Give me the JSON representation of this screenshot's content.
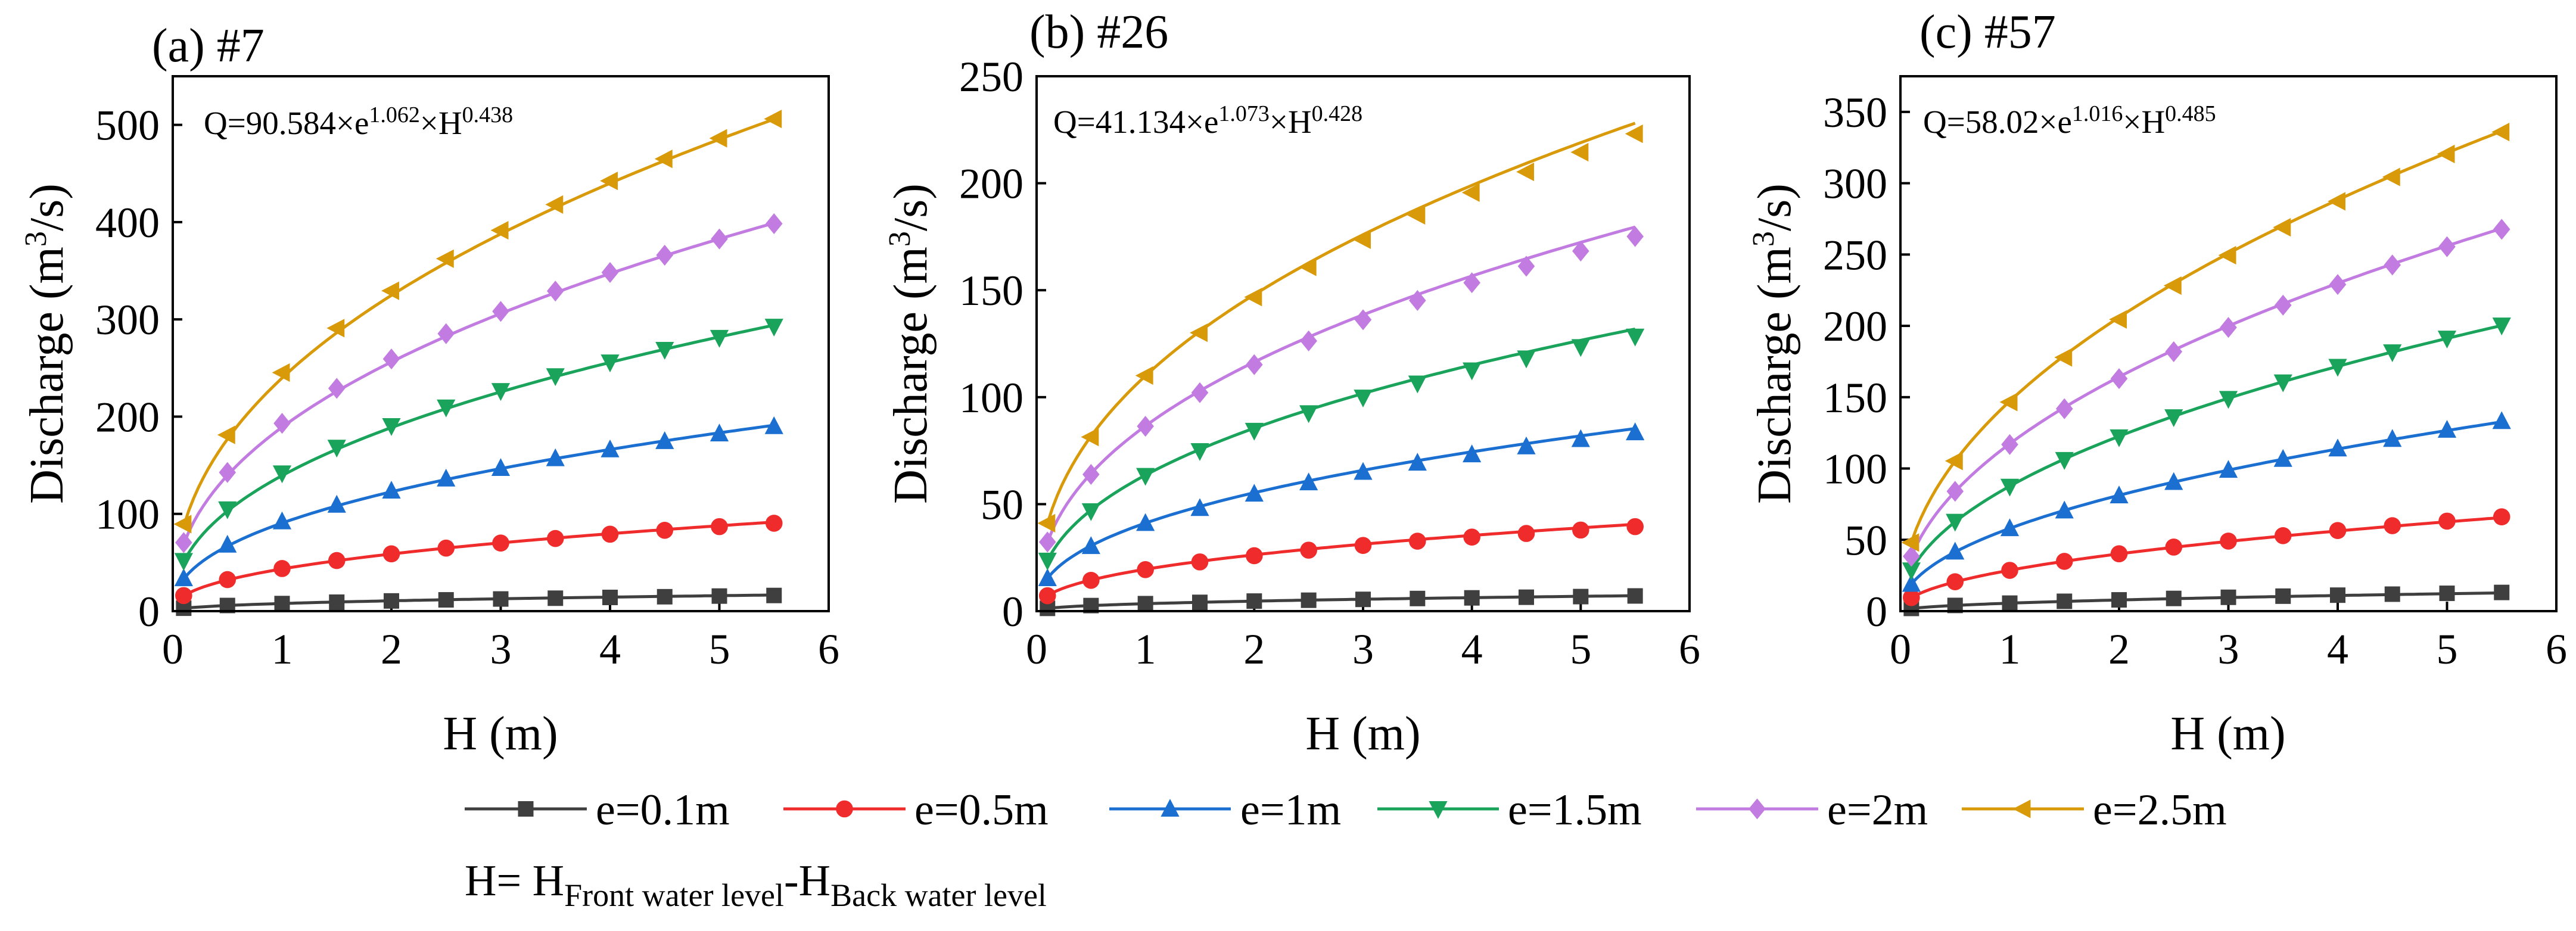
{
  "legend": {
    "items": [
      {
        "label": "e=0.1m",
        "color": "#3f3f3f",
        "marker": "square"
      },
      {
        "label": "e=0.5m",
        "color": "#ef2b2b",
        "marker": "circle"
      },
      {
        "label": "e=1m",
        "color": "#1a6fd1",
        "marker": "triangle-up"
      },
      {
        "label": "e=1.5m",
        "color": "#1aa35a",
        "marker": "triangle-down"
      },
      {
        "label": "e=2m",
        "color": "#c27be0",
        "marker": "diamond"
      },
      {
        "label": "e=2.5m",
        "color": "#d99a0a",
        "marker": "triangle-left"
      }
    ]
  },
  "note": {
    "prefix": "H= H",
    "sub1": "Front water level",
    "mid": "-H",
    "sub2": "Back water level"
  },
  "chart_data": [
    {
      "type": "line",
      "title": "(a) #7",
      "equation": {
        "base": "Q=90.584×e",
        "exp1": "1.062",
        "mid": "×H",
        "exp2": "0.438"
      },
      "coef": 90.584,
      "p_e": 1.062,
      "p_h": 0.438,
      "xlabel": "H (m)",
      "ylabel_prefix": "Discharge (m",
      "ylabel_sup": "3",
      "ylabel_suffix": "/s)",
      "xlim": [
        0,
        6
      ],
      "ylim": [
        0,
        550
      ],
      "xticks": [
        0,
        1,
        2,
        3,
        4,
        5,
        6
      ],
      "yticks": [
        0,
        100,
        200,
        300,
        400,
        500
      ],
      "x": [
        0.1,
        0.5,
        1,
        1.5,
        2,
        2.5,
        3,
        3.5,
        4,
        4.5,
        5,
        5.5
      ],
      "series": [
        {
          "name": "e=0.1m",
          "e": 0.1,
          "values": [
            3.0,
            5.8,
            7.8,
            9.2,
            10.5,
            11.6,
            12.5,
            13.3,
            14.1,
            14.8,
            15.5,
            16.1
          ]
        },
        {
          "name": "e=0.5m",
          "e": 0.5,
          "values": [
            16.0,
            32.4,
            43.8,
            52.0,
            58.9,
            64.8,
            70.0,
            74.7,
            79.1,
            83.1,
            86.9,
            90.4
          ]
        },
        {
          "name": "e=1m",
          "e": 1,
          "values": [
            33.6,
            68.1,
            92.1,
            109.2,
            123.7,
            136.1,
            147.0,
            157.0,
            166.1,
            174.6,
            182.5,
            190.0
          ]
        },
        {
          "name": "e=1.5m",
          "e": 1.5,
          "values": [
            51.8,
            104.9,
            141.9,
            168.3,
            190.5,
            209.6,
            226.5,
            241.8,
            255.9,
            268.9,
            281.2,
            292.7
          ]
        },
        {
          "name": "e=2m",
          "e": 2,
          "values": [
            70.5,
            142.6,
            193.1,
            229.1,
            259.3,
            285.3,
            308.2,
            329.1,
            348.2,
            366.0,
            382.7,
            398.4
          ]
        },
        {
          "name": "e=2.5m",
          "e": 2.5,
          "values": [
            89.5,
            181.2,
            245.3,
            291.0,
            329.4,
            362.4,
            391.6,
            418.1,
            442.4,
            465.0,
            486.2,
            506.1
          ]
        }
      ]
    },
    {
      "type": "line",
      "title": "(b) #26",
      "equation": {
        "base": "Q=41.134×e",
        "exp1": "1.073",
        "mid": "×H",
        "exp2": "0.428"
      },
      "coef": 41.134,
      "p_e": 1.073,
      "p_h": 0.428,
      "xlabel": "H (m)",
      "ylabel_prefix": "Discharge (m",
      "ylabel_sup": "3",
      "ylabel_suffix": "/s)",
      "xlim": [
        0,
        6
      ],
      "ylim": [
        0,
        250
      ],
      "xticks": [
        0,
        1,
        2,
        3,
        4,
        5,
        6
      ],
      "yticks": [
        0,
        50,
        100,
        150,
        200,
        250
      ],
      "x": [
        0.1,
        0.5,
        1,
        1.5,
        2,
        2.5,
        3,
        3.5,
        4,
        4.5,
        5,
        5.5
      ],
      "series": [
        {
          "name": "e=0.1m",
          "e": 0.1,
          "values": [
            1.3,
            2.6,
            3.5,
            4.1,
            4.7,
            5.1,
            5.5,
            5.9,
            6.2,
            6.5,
            6.8,
            7.1
          ]
        },
        {
          "name": "e=0.5m",
          "e": 0.5,
          "values": [
            7.2,
            14.4,
            19.4,
            23.0,
            25.9,
            28.5,
            30.7,
            32.7,
            34.6,
            36.3,
            37.9,
            39.5
          ]
        },
        {
          "name": "e=1m",
          "e": 1,
          "values": [
            15.3,
            30.3,
            41.1,
            48.1,
            54.8,
            60.1,
            65.0,
            69.3,
            73.2,
            76.9,
            80.3,
            83.5
          ]
        },
        {
          "name": "e=1.5m",
          "e": 1.5,
          "values": [
            23.7,
            46.8,
            63.3,
            74.9,
            84.4,
            92.6,
            99.9,
            106.5,
            112.6,
            118.2,
            123.5,
            128.4
          ]
        },
        {
          "name": "e=2m",
          "e": 2,
          "values": [
            32.3,
            63.9,
            86.4,
            102.1,
            115.2,
            126.3,
            136.2,
            145.2,
            153.5,
            161.2,
            168.3,
            175.1
          ]
        },
        {
          "name": "e=2.5m",
          "e": 2.5,
          "values": [
            41.1,
            81.4,
            110.1,
            130.1,
            146.8,
            160.9,
            173.6,
            185.0,
            195.6,
            205.3,
            214.5,
            223.1
          ]
        }
      ]
    },
    {
      "type": "line",
      "title": "(c) #57",
      "equation": {
        "base": "Q=58.02×e",
        "exp1": "1.016",
        "mid": "×H",
        "exp2": "0.485"
      },
      "coef": 58.02,
      "p_e": 1.016,
      "p_h": 0.485,
      "xlabel": "H (m)",
      "ylabel_prefix": "Discharge (m",
      "ylabel_sup": "3",
      "ylabel_suffix": "/s)",
      "xlim": [
        0,
        6
      ],
      "ylim": [
        0,
        375
      ],
      "xticks": [
        0,
        1,
        2,
        3,
        4,
        5,
        6
      ],
      "yticks": [
        0,
        50,
        100,
        150,
        200,
        250,
        300,
        350
      ],
      "x": [
        0.1,
        0.5,
        1,
        1.5,
        2,
        2.5,
        3,
        3.5,
        4,
        4.5,
        5,
        5.5
      ],
      "series": [
        {
          "name": "e=0.1m",
          "e": 0.1,
          "values": [
            1.9,
            4.0,
            5.6,
            6.9,
            7.9,
            8.9,
            9.7,
            10.5,
            11.2,
            11.9,
            12.5,
            13.1
          ]
        },
        {
          "name": "e=0.5m",
          "e": 0.5,
          "values": [
            9.5,
            20.6,
            28.6,
            34.9,
            40.2,
            44.9,
            49.1,
            52.9,
            56.5,
            59.9,
            63.1,
            66.1
          ]
        },
        {
          "name": "e=1m",
          "e": 1,
          "values": [
            19.0,
            41.6,
            58.0,
            70.4,
            81.0,
            90.4,
            98.9,
            106.6,
            113.9,
            120.6,
            127.0,
            133.1
          ]
        },
        {
          "name": "e=1.5m",
          "e": 1.5,
          "values": [
            28.7,
            62.8,
            87.4,
            106.1,
            122.0,
            136.1,
            148.9,
            160.5,
            171.4,
            181.6,
            191.2,
            200.4
          ]
        },
        {
          "name": "e=2m",
          "e": 2,
          "values": [
            38.4,
            84.0,
            116.8,
            141.9,
            163.0,
            181.9,
            198.9,
            214.5,
            229.0,
            242.7,
            255.5,
            267.7
          ]
        },
        {
          "name": "e=2.5m",
          "e": 2.5,
          "values": [
            48.1,
            105.3,
            146.6,
            177.9,
            204.5,
            228.2,
            249.5,
            269.1,
            287.3,
            304.4,
            320.5,
            335.9
          ]
        }
      ]
    }
  ]
}
